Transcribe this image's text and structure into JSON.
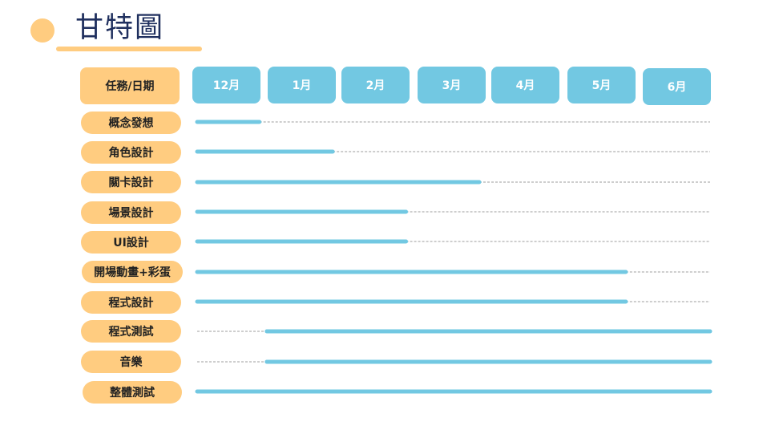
{
  "title": "甘特圖",
  "colors": {
    "accent": "#FFCC80",
    "bar": "#72C8E2",
    "dash": "#9e9e9e",
    "title": "#1f2f5e"
  },
  "chart_data": {
    "type": "bar",
    "title": "甘特圖",
    "header_label": "任務/日期",
    "categories": [
      "12月",
      "1月",
      "2月",
      "3月",
      "4月",
      "5月",
      "6月"
    ],
    "tasks": [
      {
        "label": "概念發想",
        "start": 0.0,
        "end": 0.85
      },
      {
        "label": "角色設計",
        "start": 0.0,
        "end": 1.85
      },
      {
        "label": "關卡設計",
        "start": 0.0,
        "end": 3.85
      },
      {
        "label": "場景設計",
        "start": 0.0,
        "end": 2.85
      },
      {
        "label": "UI設計",
        "start": 0.0,
        "end": 2.85
      },
      {
        "label": "開場動畫+彩蛋",
        "start": 0.0,
        "end": 5.85
      },
      {
        "label": "程式設計",
        "start": 0.0,
        "end": 5.85
      },
      {
        "label": "程式測試",
        "start": 0.95,
        "end": 7.0
      },
      {
        "label": "音樂",
        "start": 0.95,
        "end": 7.0
      },
      {
        "label": "整體測試",
        "start": 0.0,
        "end": 7.0
      }
    ]
  }
}
